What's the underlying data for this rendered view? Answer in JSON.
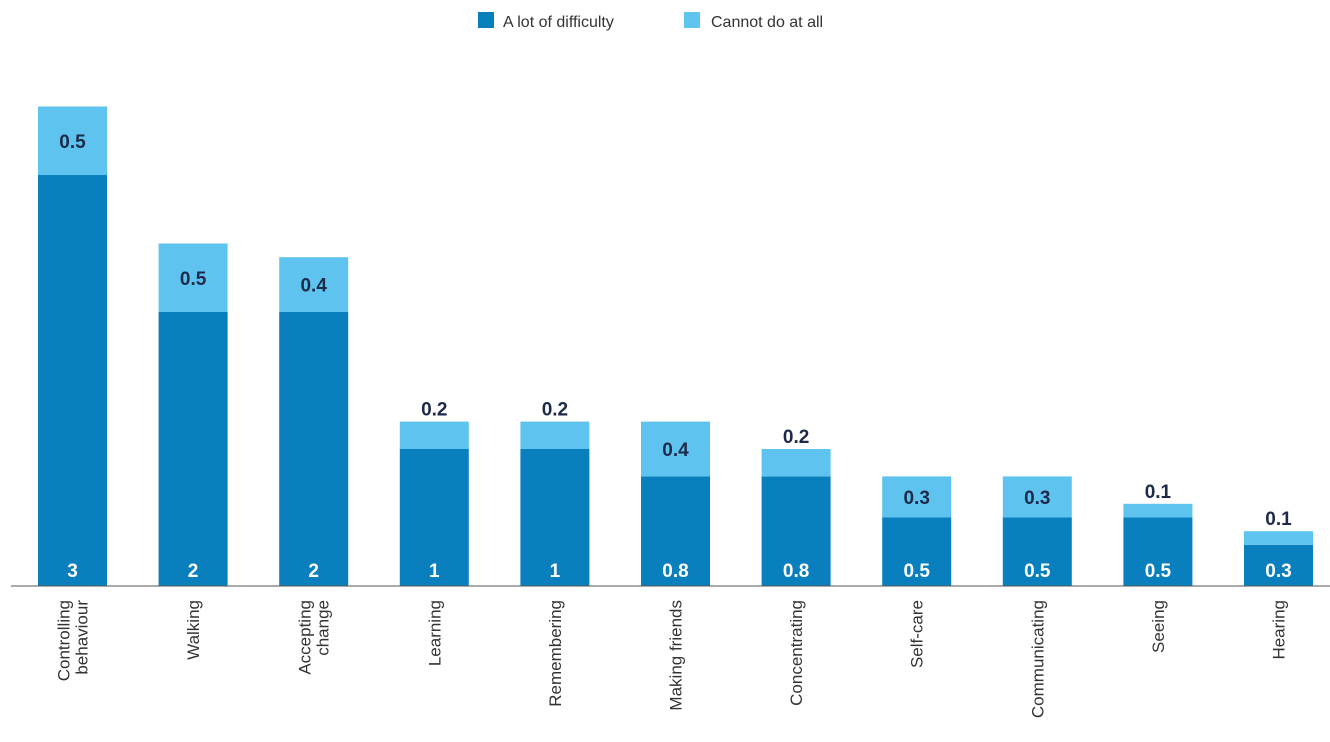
{
  "chart_data": {
    "type": "bar",
    "stacked": true,
    "categories": [
      [
        "Controlling",
        "behaviour"
      ],
      [
        "Walking"
      ],
      [
        "Accepting",
        "change"
      ],
      [
        "Learning"
      ],
      [
        "Remembering"
      ],
      [
        "Making friends"
      ],
      [
        "Concentrating"
      ],
      [
        "Self-care"
      ],
      [
        "Communicating"
      ],
      [
        "Seeing"
      ],
      [
        "Hearing"
      ]
    ],
    "series": [
      {
        "name": "A lot of difficulty",
        "color": "#0a7fbd",
        "values": [
          3,
          2,
          2,
          1,
          1,
          0.8,
          0.8,
          0.5,
          0.5,
          0.5,
          0.3
        ],
        "labels": [
          "3",
          "2",
          "2",
          "1",
          "1",
          "0.8",
          "0.8",
          "0.5",
          "0.5",
          "0.5",
          "0.3"
        ]
      },
      {
        "name": "Cannot do at all",
        "color": "#5ec4ef",
        "values": [
          0.5,
          0.5,
          0.4,
          0.2,
          0.2,
          0.4,
          0.2,
          0.3,
          0.3,
          0.1,
          0.1
        ],
        "labels": [
          "0.5",
          "0.5",
          "0.4",
          "0.2",
          "0.2",
          "0.4",
          "0.2",
          "0.3",
          "0.3",
          "0.1",
          "0.1"
        ]
      }
    ],
    "legend_position": "top-center",
    "grid": false,
    "title": "",
    "xlabel": "",
    "ylabel": ""
  }
}
